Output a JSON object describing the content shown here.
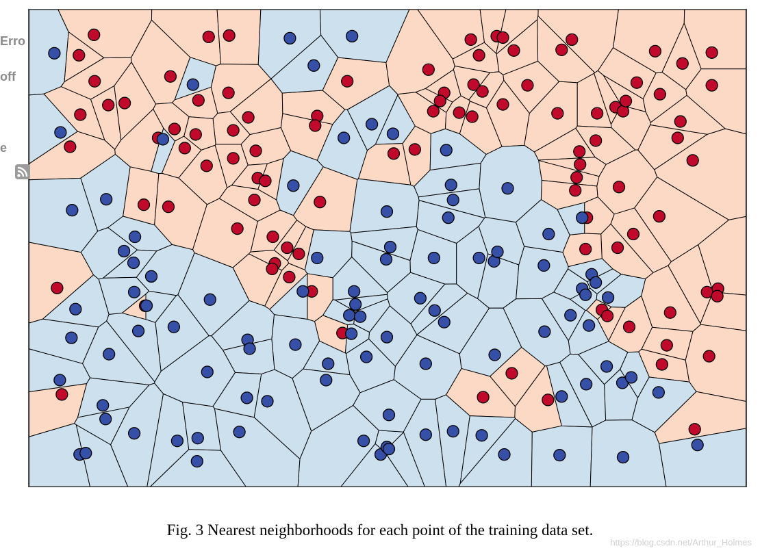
{
  "sidebar_fragments": [
    "Erro",
    "off",
    "e"
  ],
  "caption": "Fig. 3 Nearest neighborhoods for each point of the training data set.",
  "watermark": "https://blog.csdn.net/Arthur_Holmes",
  "colors": {
    "blue_region": "#cde0ee",
    "red_region": "#fcd9c4",
    "blue_point": "#3550a6",
    "red_point": "#c10a2b",
    "edge": "#000000"
  },
  "icons": [
    "rss-icon"
  ],
  "chart_data": {
    "type": "scatter",
    "description_class": "voronoi",
    "series": [
      {
        "class": "red",
        "points": [
          [
            136,
            50
          ],
          [
            114,
            80
          ],
          [
            137,
            118
          ],
          [
            157,
            153
          ],
          [
            181,
            150
          ],
          [
            116,
            167
          ],
          [
            101,
            214
          ],
          [
            248,
            111
          ],
          [
            289,
            146
          ],
          [
            304,
            53
          ],
          [
            334,
            51
          ],
          [
            333,
            135
          ],
          [
            362,
            171
          ],
          [
            340,
            190
          ],
          [
            285,
            196
          ],
          [
            254,
            188
          ],
          [
            230,
            201
          ],
          [
            269,
            216
          ],
          [
            301,
            242
          ],
          [
            340,
            231
          ],
          [
            373,
            220
          ],
          [
            376,
            260
          ],
          [
            387,
            264
          ],
          [
            371,
            292
          ],
          [
            209,
            299
          ],
          [
            245,
            302
          ],
          [
            346,
            334
          ],
          [
            398,
            346
          ],
          [
            419,
            362
          ],
          [
            436,
            371
          ],
          [
            401,
            385
          ],
          [
            397,
            393
          ],
          [
            422,
            405
          ],
          [
            463,
            169
          ],
          [
            460,
            183
          ],
          [
            507,
            118
          ],
          [
            467,
            295
          ],
          [
            455,
            426
          ],
          [
            211,
            447
          ],
          [
            82,
            421
          ],
          [
            89,
            577
          ],
          [
            500,
            487
          ],
          [
            575,
            224
          ],
          [
            606,
            218
          ],
          [
            626,
            101
          ],
          [
            649,
            135
          ],
          [
            643,
            147
          ],
          [
            633,
            162
          ],
          [
            671,
            164
          ],
          [
            690,
            170
          ],
          [
            692,
            123
          ],
          [
            705,
            133
          ],
          [
            735,
            152
          ],
          [
            771,
            124
          ],
          [
            688,
            57
          ],
          [
            700,
            80
          ],
          [
            726,
            52
          ],
          [
            735,
            54
          ],
          [
            751,
            73
          ],
          [
            836,
            57
          ],
          [
            821,
            72
          ],
          [
            815,
            165
          ],
          [
            873,
            165
          ],
          [
            900,
            156
          ],
          [
            911,
            162
          ],
          [
            915,
            147
          ],
          [
            931,
            120
          ],
          [
            958,
            74
          ],
          [
            998,
            92
          ],
          [
            1041,
            76
          ],
          [
            965,
            137
          ],
          [
            995,
            177
          ],
          [
            991,
            201
          ],
          [
            1041,
            124
          ],
          [
            1013,
            234
          ],
          [
            871,
            205
          ],
          [
            847,
            221
          ],
          [
            848,
            240
          ],
          [
            843,
            259
          ],
          [
            841,
            278
          ],
          [
            905,
            273
          ],
          [
            858,
            318
          ],
          [
            926,
            342
          ],
          [
            903,
            362
          ],
          [
            856,
            364
          ],
          [
            964,
            316
          ],
          [
            880,
            453
          ],
          [
            888,
            462
          ],
          [
            920,
            478
          ],
          [
            980,
            457
          ],
          [
            1034,
            427
          ],
          [
            1050,
            422
          ],
          [
            1049,
            433
          ],
          [
            975,
            505
          ],
          [
            968,
            533
          ],
          [
            1037,
            521
          ],
          [
            748,
            546
          ],
          [
            706,
            581
          ],
          [
            801,
            585
          ],
          [
            1016,
            628
          ]
        ]
      },
      {
        "class": "blue",
        "points": [
          [
            78,
            77
          ],
          [
            87,
            193
          ],
          [
            423,
            55
          ],
          [
            514,
            52
          ],
          [
            458,
            95
          ],
          [
            281,
            123
          ],
          [
            237,
            203
          ],
          [
            502,
            201
          ],
          [
            543,
            181
          ],
          [
            574,
            195
          ],
          [
            652,
            219
          ],
          [
            428,
            271
          ],
          [
            659,
            270
          ],
          [
            662,
            292
          ],
          [
            742,
            275
          ],
          [
            655,
            318
          ],
          [
            565,
            309
          ],
          [
            154,
            291
          ],
          [
            104,
            307
          ],
          [
            196,
            346
          ],
          [
            180,
            367
          ],
          [
            194,
            384
          ],
          [
            220,
            404
          ],
          [
            195,
            427
          ],
          [
            213,
            447
          ],
          [
            109,
            452
          ],
          [
            306,
            438
          ],
          [
            253,
            478
          ],
          [
            201,
            484
          ],
          [
            103,
            494
          ],
          [
            158,
            518
          ],
          [
            361,
            497
          ],
          [
            364,
            510
          ],
          [
            431,
            504
          ],
          [
            463,
            377
          ],
          [
            442,
            426
          ],
          [
            570,
            361
          ],
          [
            564,
            379
          ],
          [
            634,
            377
          ],
          [
            700,
            377
          ],
          [
            722,
            382
          ],
          [
            727,
            368
          ],
          [
            802,
            342
          ],
          [
            851,
            318
          ],
          [
            795,
            388
          ],
          [
            865,
            401
          ],
          [
            871,
            413
          ],
          [
            851,
            422
          ],
          [
            856,
            431
          ],
          [
            889,
            435
          ],
          [
            834,
            461
          ],
          [
            861,
            476
          ],
          [
            796,
            485
          ],
          [
            723,
            519
          ],
          [
            614,
            436
          ],
          [
            635,
            454
          ],
          [
            649,
            471
          ],
          [
            565,
            493
          ],
          [
            517,
            426
          ],
          [
            519,
            445
          ],
          [
            510,
            461
          ],
          [
            526,
            463
          ],
          [
            513,
            488
          ],
          [
            535,
            522
          ],
          [
            622,
            532
          ],
          [
            479,
            532
          ],
          [
            476,
            556
          ],
          [
            302,
            544
          ],
          [
            360,
            582
          ],
          [
            390,
            587
          ],
          [
            86,
            556
          ],
          [
            149,
            593
          ],
          [
            153,
            613
          ],
          [
            195,
            634
          ],
          [
            115,
            665
          ],
          [
            124,
            663
          ],
          [
            258,
            645
          ],
          [
            288,
            641
          ],
          [
            287,
            675
          ],
          [
            349,
            632
          ],
          [
            531,
            645
          ],
          [
            556,
            665
          ],
          [
            565,
            654
          ],
          [
            568,
            657
          ],
          [
            568,
            607
          ],
          [
            622,
            636
          ],
          [
            662,
            631
          ],
          [
            704,
            637
          ],
          [
            737,
            665
          ],
          [
            818,
            666
          ],
          [
            821,
            580
          ],
          [
            857,
            562
          ],
          [
            887,
            536
          ],
          [
            910,
            560
          ],
          [
            923,
            552
          ],
          [
            963,
            574
          ],
          [
            911,
            669
          ],
          [
            1020,
            651
          ]
        ]
      }
    ]
  }
}
